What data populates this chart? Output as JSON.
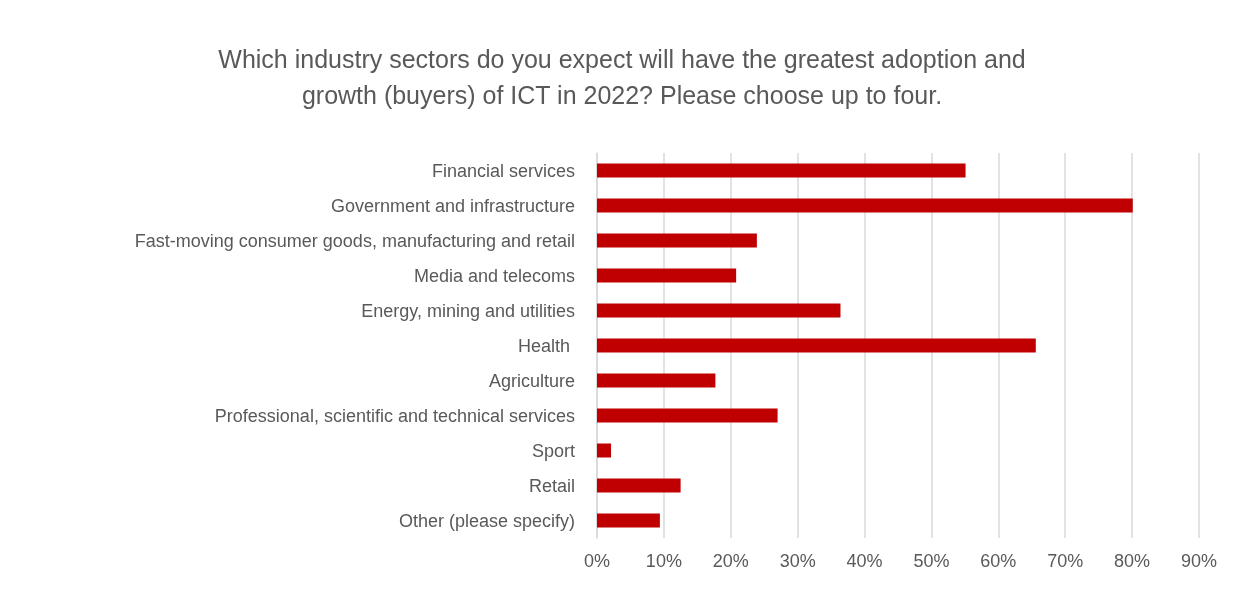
{
  "chart_data": {
    "type": "bar",
    "orientation": "horizontal",
    "title": "Which industry sectors do you expect will have the greatest adoption and\ngrowth (buyers) of ICT in 2022? Please choose up to four.",
    "categories": [
      "Financial services",
      "Government and infrastructure",
      "Fast-moving consumer goods, manufacturing and retail",
      "Media and telecoms",
      "Energy, mining and utilities",
      "Health ",
      "Agriculture",
      "Professional, scientific and technical services",
      "Sport",
      "Retail",
      "Other (please specify)"
    ],
    "values": [
      55.1,
      80.1,
      23.9,
      20.8,
      36.4,
      65.6,
      17.7,
      27.0,
      2.1,
      12.5,
      9.4
    ],
    "color": "#c00000",
    "xlim": [
      0,
      90
    ],
    "xticks": [
      {
        "value": 0,
        "label": "0%"
      },
      {
        "value": 10,
        "label": "10%"
      },
      {
        "value": 20,
        "label": "20%"
      },
      {
        "value": 30,
        "label": "30%"
      },
      {
        "value": 40,
        "label": "40%"
      },
      {
        "value": 50,
        "label": "50%"
      },
      {
        "value": 60,
        "label": "60%"
      },
      {
        "value": 70,
        "label": "70%"
      },
      {
        "value": 80,
        "label": "80%"
      },
      {
        "value": 90,
        "label": "90%"
      }
    ],
    "grid": "x"
  }
}
